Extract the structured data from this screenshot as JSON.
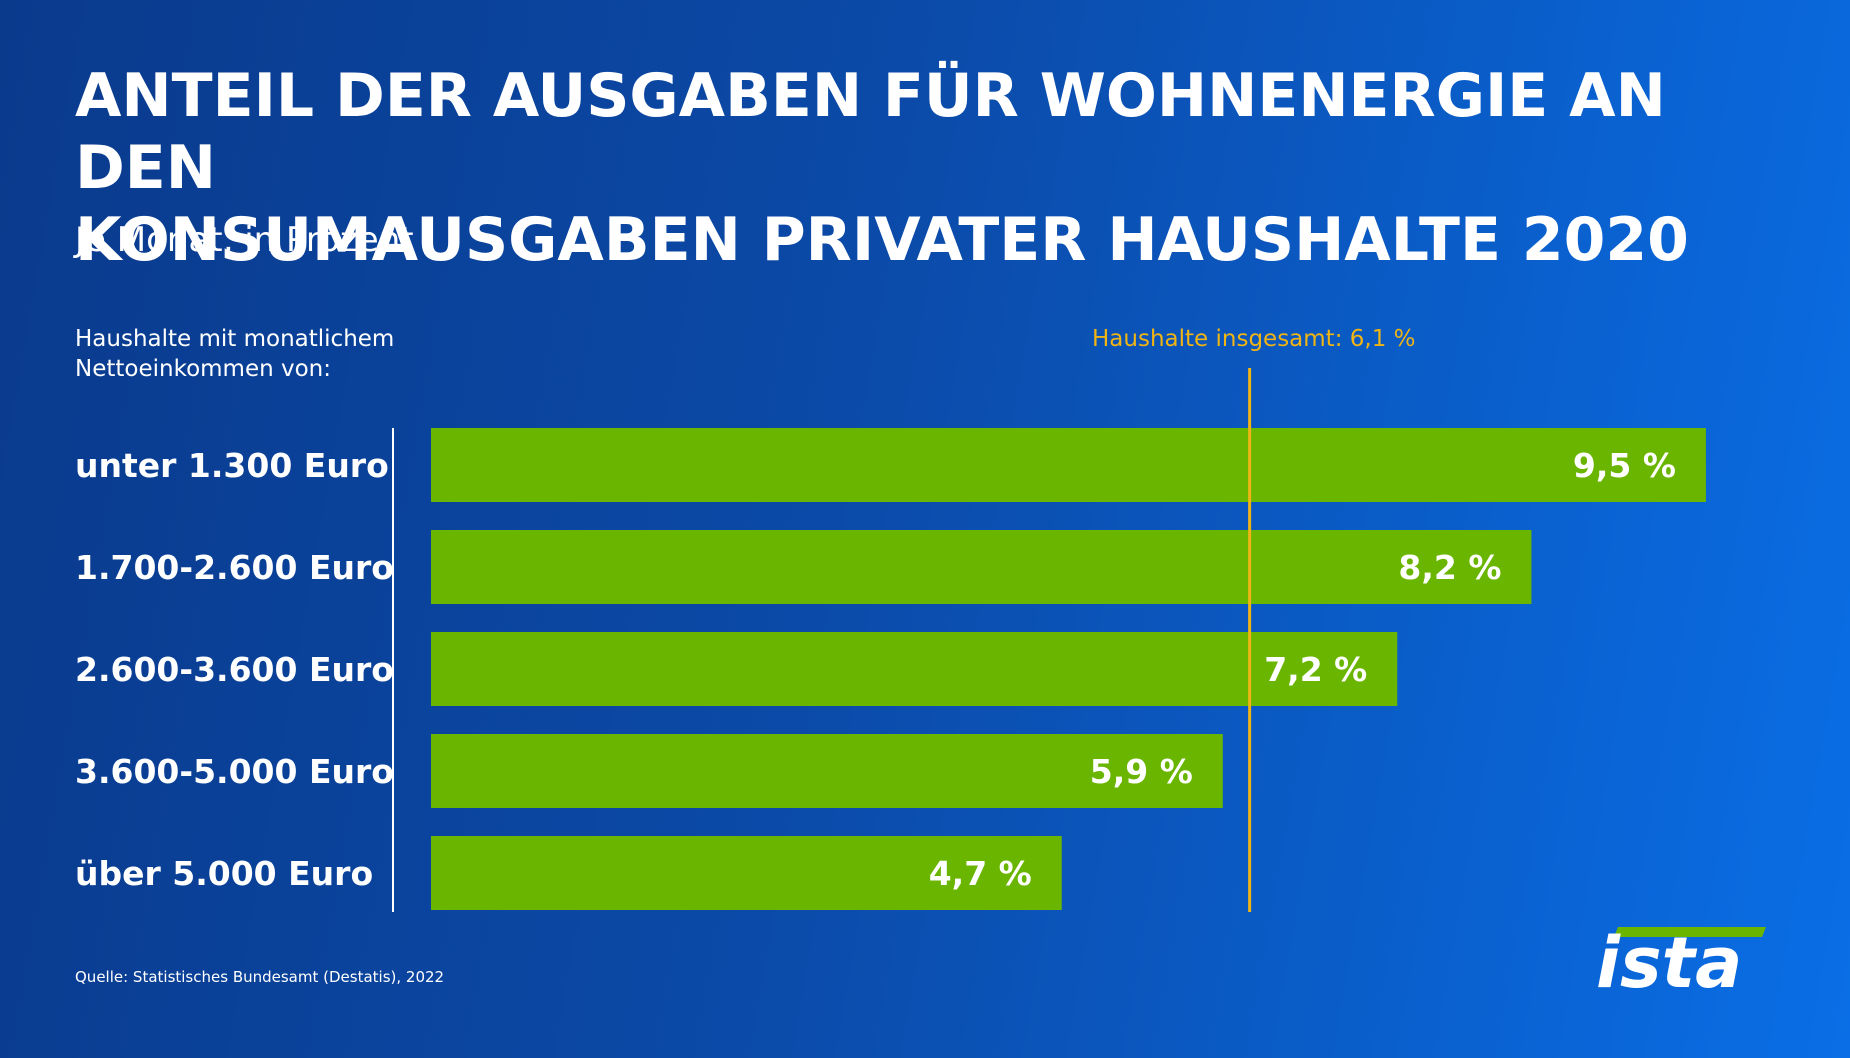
{
  "title_lines": [
    "ANTEIL DER AUSGABEN FÜR WOHNENERGIE AN DEN",
    "KONSUMAUSGABEN PRIVATER HAUSHALTE 2020"
  ],
  "subtitle": "Je Monat, in Prozent",
  "category_header_lines": [
    "Haushalte mit monatlichem",
    "Nettoeinkommen von:"
  ],
  "source": "Quelle: Statistisches Bundesamt (Destatis), 2022",
  "logo_text": "ista",
  "colors": {
    "bar": "#6ab500",
    "reference_line": "#f0b414",
    "text": "#ffffff"
  },
  "chart_data": {
    "type": "bar",
    "orientation": "horizontal",
    "categories": [
      "unter 1.300 Euro",
      "1.700-2.600 Euro",
      "2.600-3.600 Euro",
      "3.600-5.000 Euro",
      "über 5.000 Euro"
    ],
    "values": [
      9.5,
      8.2,
      7.2,
      5.9,
      4.7
    ],
    "value_labels": [
      "9,5 %",
      "8,2 %",
      "7,2 %",
      "5,9 %",
      "4,7 %"
    ],
    "reference": {
      "label": "Haushalte insgesamt: 6,1 %",
      "value": 6.1
    },
    "grid": false
  }
}
